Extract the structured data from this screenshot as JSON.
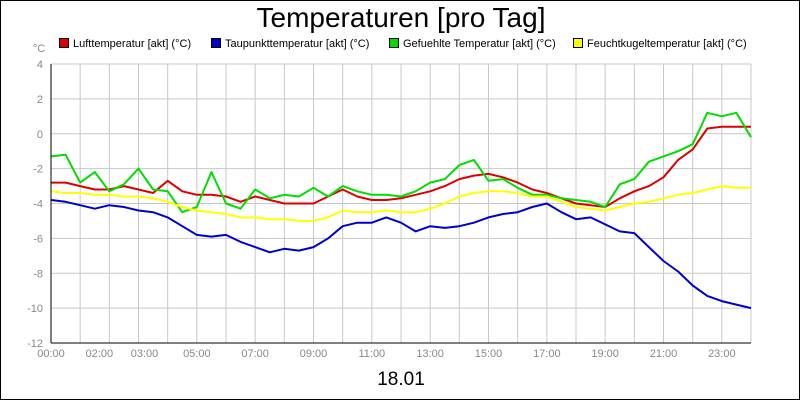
{
  "chart_data": {
    "type": "line",
    "title": "Temperaturen [pro Tag]",
    "date": "18.01",
    "unit": "°C",
    "ylim": [
      -12,
      4
    ],
    "yticks": [
      -12,
      -10,
      -8,
      -6,
      -4,
      -2,
      0,
      2,
      4
    ],
    "xlim": [
      0,
      24
    ],
    "xticks": [
      {
        "h": 0,
        "label": "00:00"
      },
      {
        "h": 2,
        "label": "02:00"
      },
      {
        "h": 3,
        "label": "03:00"
      },
      {
        "h": 5,
        "label": "05:00"
      },
      {
        "h": 7,
        "label": "07:00"
      },
      {
        "h": 9,
        "label": "09:00"
      },
      {
        "h": 11,
        "label": "11:00"
      },
      {
        "h": 13,
        "label": "13:00"
      },
      {
        "h": 15,
        "label": "15:00"
      },
      {
        "h": 17,
        "label": "17:00"
      },
      {
        "h": 19,
        "label": "19:00"
      },
      {
        "h": 21,
        "label": "21:00"
      },
      {
        "h": 23,
        "label": "23:00"
      }
    ],
    "grid": true,
    "legend_position": "top",
    "series": [
      {
        "name": "Lufttemperatur [akt] (°C)",
        "color": "#dd0000",
        "x": [
          0,
          0.5,
          1,
          1.5,
          2,
          2.5,
          3,
          3.5,
          4,
          4.5,
          5,
          5.5,
          6,
          6.5,
          7,
          7.5,
          8,
          8.5,
          9,
          9.5,
          10,
          10.5,
          11,
          11.5,
          12,
          12.5,
          13,
          13.5,
          14,
          14.5,
          15,
          15.5,
          16,
          16.5,
          17,
          17.5,
          18,
          18.5,
          19,
          19.5,
          20,
          20.5,
          21,
          21.5,
          22,
          22.5,
          23,
          23.5,
          24
        ],
        "values": [
          -2.8,
          -2.8,
          -3.0,
          -3.2,
          -3.2,
          -3.0,
          -3.2,
          -3.4,
          -2.7,
          -3.3,
          -3.5,
          -3.5,
          -3.6,
          -3.9,
          -3.6,
          -3.8,
          -4.0,
          -4.0,
          -4.0,
          -3.6,
          -3.2,
          -3.6,
          -3.8,
          -3.8,
          -3.7,
          -3.5,
          -3.3,
          -3.0,
          -2.6,
          -2.4,
          -2.3,
          -2.5,
          -2.8,
          -3.2,
          -3.4,
          -3.7,
          -4.0,
          -4.1,
          -4.2,
          -3.7,
          -3.3,
          -3.0,
          -2.5,
          -1.5,
          -0.9,
          0.3,
          0.4,
          0.4,
          0.4
        ]
      },
      {
        "name": "Taupunkttemperatur [akt] (°C)",
        "color": "#0000cc",
        "x": [
          0,
          0.5,
          1,
          1.5,
          2,
          2.5,
          3,
          3.5,
          4,
          4.5,
          5,
          5.5,
          6,
          6.5,
          7,
          7.5,
          8,
          8.5,
          9,
          9.5,
          10,
          10.5,
          11,
          11.5,
          12,
          12.5,
          13,
          13.5,
          14,
          14.5,
          15,
          15.5,
          16,
          16.5,
          17,
          17.5,
          18,
          18.5,
          19,
          19.5,
          20,
          20.5,
          21,
          21.5,
          22,
          22.5,
          23,
          23.5,
          24
        ],
        "values": [
          -3.8,
          -3.9,
          -4.1,
          -4.3,
          -4.1,
          -4.2,
          -4.4,
          -4.5,
          -4.8,
          -5.3,
          -5.8,
          -5.9,
          -5.8,
          -6.2,
          -6.5,
          -6.8,
          -6.6,
          -6.7,
          -6.5,
          -6.0,
          -5.3,
          -5.1,
          -5.1,
          -4.8,
          -5.1,
          -5.6,
          -5.3,
          -5.4,
          -5.3,
          -5.1,
          -4.8,
          -4.6,
          -4.5,
          -4.2,
          -4.0,
          -4.5,
          -4.9,
          -4.8,
          -5.2,
          -5.6,
          -5.7,
          -6.5,
          -7.3,
          -7.9,
          -8.7,
          -9.3,
          -9.6,
          -9.8,
          -10.0
        ]
      },
      {
        "name": "Gefuehlte Temperatur [akt] (°C)",
        "color": "#00dd00",
        "x": [
          0,
          0.5,
          1,
          1.5,
          2,
          2.5,
          3,
          3.5,
          4,
          4.5,
          5,
          5.5,
          6,
          6.5,
          7,
          7.5,
          8,
          8.5,
          9,
          9.5,
          10,
          10.5,
          11,
          11.5,
          12,
          12.5,
          13,
          13.5,
          14,
          14.5,
          15,
          15.5,
          16,
          16.5,
          17,
          17.5,
          18,
          18.5,
          19,
          19.5,
          20,
          20.5,
          21,
          21.5,
          22,
          22.5,
          23,
          23.5,
          24
        ],
        "values": [
          -1.3,
          -1.2,
          -2.8,
          -2.2,
          -3.3,
          -2.9,
          -2.0,
          -3.2,
          -3.3,
          -4.5,
          -4.2,
          -2.2,
          -4.0,
          -4.3,
          -3.2,
          -3.7,
          -3.5,
          -3.6,
          -3.1,
          -3.6,
          -3.0,
          -3.3,
          -3.5,
          -3.5,
          -3.6,
          -3.3,
          -2.8,
          -2.6,
          -1.8,
          -1.5,
          -2.7,
          -2.6,
          -3.1,
          -3.5,
          -3.5,
          -3.7,
          -3.8,
          -3.9,
          -4.2,
          -2.9,
          -2.6,
          -1.6,
          -1.3,
          -1.0,
          -0.6,
          1.2,
          1.0,
          1.2,
          -0.2
        ]
      },
      {
        "name": "Feuchtkugeltemperatur [akt] (°C)",
        "color": "#ffff00",
        "x": [
          0,
          0.5,
          1,
          1.5,
          2,
          2.5,
          3,
          3.5,
          4,
          4.5,
          5,
          5.5,
          6,
          6.5,
          7,
          7.5,
          8,
          8.5,
          9,
          9.5,
          10,
          10.5,
          11,
          11.5,
          12,
          12.5,
          13,
          13.5,
          14,
          14.5,
          15,
          15.5,
          16,
          16.5,
          17,
          17.5,
          18,
          18.5,
          19,
          19.5,
          20,
          20.5,
          21,
          21.5,
          22,
          22.5,
          23,
          23.5,
          24
        ],
        "values": [
          -3.3,
          -3.4,
          -3.4,
          -3.5,
          -3.5,
          -3.6,
          -3.6,
          -3.7,
          -3.9,
          -4.2,
          -4.4,
          -4.5,
          -4.6,
          -4.8,
          -4.8,
          -4.9,
          -4.9,
          -5.0,
          -5.0,
          -4.8,
          -4.4,
          -4.5,
          -4.5,
          -4.4,
          -4.5,
          -4.5,
          -4.3,
          -4.0,
          -3.6,
          -3.4,
          -3.3,
          -3.3,
          -3.4,
          -3.6,
          -3.6,
          -3.9,
          -4.2,
          -4.3,
          -4.4,
          -4.2,
          -4.0,
          -3.9,
          -3.7,
          -3.5,
          -3.4,
          -3.2,
          -3.0,
          -3.1,
          -3.1
        ]
      }
    ]
  }
}
